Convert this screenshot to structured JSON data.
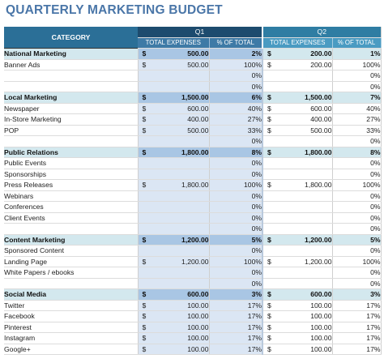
{
  "title": "QUARTERLY MARKETING BUDGET",
  "header": {
    "category": "CATEGORY",
    "quarters": [
      "Q1",
      "Q2"
    ],
    "total_expenses": "TOTAL EXPENSES",
    "pct_of_total": "% OF TOTAL"
  },
  "rows": [
    {
      "type": "section",
      "category": "National Marketing",
      "q1_cur": "$",
      "q1_exp": "500.00",
      "q1_pct": "2%",
      "q2_cur": "$",
      "q2_exp": "200.00",
      "q2_pct": "1%"
    },
    {
      "type": "item",
      "category": "Banner Ads",
      "q1_cur": "$",
      "q1_exp": "500.00",
      "q1_pct": "100%",
      "q2_cur": "$",
      "q2_exp": "200.00",
      "q2_pct": "100%"
    },
    {
      "type": "item",
      "category": "",
      "q1_cur": "",
      "q1_exp": "",
      "q1_pct": "0%",
      "q2_cur": "",
      "q2_exp": "",
      "q2_pct": "0%"
    },
    {
      "type": "item",
      "category": "",
      "q1_cur": "",
      "q1_exp": "",
      "q1_pct": "0%",
      "q2_cur": "",
      "q2_exp": "",
      "q2_pct": "0%"
    },
    {
      "type": "section",
      "category": "Local Marketing",
      "q1_cur": "$",
      "q1_exp": "1,500.00",
      "q1_pct": "6%",
      "q2_cur": "$",
      "q2_exp": "1,500.00",
      "q2_pct": "7%"
    },
    {
      "type": "item",
      "category": "Newspaper",
      "q1_cur": "$",
      "q1_exp": "600.00",
      "q1_pct": "40%",
      "q2_cur": "$",
      "q2_exp": "600.00",
      "q2_pct": "40%"
    },
    {
      "type": "item",
      "category": "In-Store Marketing",
      "q1_cur": "$",
      "q1_exp": "400.00",
      "q1_pct": "27%",
      "q2_cur": "$",
      "q2_exp": "400.00",
      "q2_pct": "27%"
    },
    {
      "type": "item",
      "category": "POP",
      "q1_cur": "$",
      "q1_exp": "500.00",
      "q1_pct": "33%",
      "q2_cur": "$",
      "q2_exp": "500.00",
      "q2_pct": "33%"
    },
    {
      "type": "item",
      "category": "",
      "q1_cur": "",
      "q1_exp": "",
      "q1_pct": "0%",
      "q2_cur": "",
      "q2_exp": "",
      "q2_pct": "0%"
    },
    {
      "type": "section",
      "category": "Public Relations",
      "q1_cur": "$",
      "q1_exp": "1,800.00",
      "q1_pct": "8%",
      "q2_cur": "$",
      "q2_exp": "1,800.00",
      "q2_pct": "8%"
    },
    {
      "type": "item",
      "category": "Public Events",
      "q1_cur": "",
      "q1_exp": "",
      "q1_pct": "0%",
      "q2_cur": "",
      "q2_exp": "",
      "q2_pct": "0%"
    },
    {
      "type": "item",
      "category": "Sponsorships",
      "q1_cur": "",
      "q1_exp": "",
      "q1_pct": "0%",
      "q2_cur": "",
      "q2_exp": "",
      "q2_pct": "0%"
    },
    {
      "type": "item",
      "category": "Press Releases",
      "q1_cur": "$",
      "q1_exp": "1,800.00",
      "q1_pct": "100%",
      "q2_cur": "$",
      "q2_exp": "1,800.00",
      "q2_pct": "100%"
    },
    {
      "type": "item",
      "category": "Webinars",
      "q1_cur": "",
      "q1_exp": "",
      "q1_pct": "0%",
      "q2_cur": "",
      "q2_exp": "",
      "q2_pct": "0%"
    },
    {
      "type": "item",
      "category": "Conferences",
      "q1_cur": "",
      "q1_exp": "",
      "q1_pct": "0%",
      "q2_cur": "",
      "q2_exp": "",
      "q2_pct": "0%"
    },
    {
      "type": "item",
      "category": "Client Events",
      "q1_cur": "",
      "q1_exp": "",
      "q1_pct": "0%",
      "q2_cur": "",
      "q2_exp": "",
      "q2_pct": "0%"
    },
    {
      "type": "item",
      "category": "",
      "q1_cur": "",
      "q1_exp": "",
      "q1_pct": "0%",
      "q2_cur": "",
      "q2_exp": "",
      "q2_pct": "0%"
    },
    {
      "type": "section",
      "category": "Content Marketing",
      "q1_cur": "$",
      "q1_exp": "1,200.00",
      "q1_pct": "5%",
      "q2_cur": "$",
      "q2_exp": "1,200.00",
      "q2_pct": "5%"
    },
    {
      "type": "item",
      "category": "Sponsored Content",
      "q1_cur": "",
      "q1_exp": "",
      "q1_pct": "0%",
      "q2_cur": "",
      "q2_exp": "",
      "q2_pct": "0%"
    },
    {
      "type": "item",
      "category": "Landing Page",
      "q1_cur": "$",
      "q1_exp": "1,200.00",
      "q1_pct": "100%",
      "q2_cur": "$",
      "q2_exp": "1,200.00",
      "q2_pct": "100%"
    },
    {
      "type": "item",
      "category": "White Papers / ebooks",
      "q1_cur": "",
      "q1_exp": "",
      "q1_pct": "0%",
      "q2_cur": "",
      "q2_exp": "",
      "q2_pct": "0%"
    },
    {
      "type": "item",
      "category": "",
      "q1_cur": "",
      "q1_exp": "",
      "q1_pct": "0%",
      "q2_cur": "",
      "q2_exp": "",
      "q2_pct": "0%"
    },
    {
      "type": "section",
      "category": "Social Media",
      "q1_cur": "$",
      "q1_exp": "600.00",
      "q1_pct": "3%",
      "q2_cur": "$",
      "q2_exp": "600.00",
      "q2_pct": "3%"
    },
    {
      "type": "item",
      "category": "Twitter",
      "q1_cur": "$",
      "q1_exp": "100.00",
      "q1_pct": "17%",
      "q2_cur": "$",
      "q2_exp": "100.00",
      "q2_pct": "17%"
    },
    {
      "type": "item",
      "category": "Facebook",
      "q1_cur": "$",
      "q1_exp": "100.00",
      "q1_pct": "17%",
      "q2_cur": "$",
      "q2_exp": "100.00",
      "q2_pct": "17%"
    },
    {
      "type": "item",
      "category": "Pinterest",
      "q1_cur": "$",
      "q1_exp": "100.00",
      "q1_pct": "17%",
      "q2_cur": "$",
      "q2_exp": "100.00",
      "q2_pct": "17%"
    },
    {
      "type": "item",
      "category": "Instagram",
      "q1_cur": "$",
      "q1_exp": "100.00",
      "q1_pct": "17%",
      "q2_cur": "$",
      "q2_exp": "100.00",
      "q2_pct": "17%"
    },
    {
      "type": "item",
      "category": "Google+",
      "q1_cur": "$",
      "q1_exp": "100.00",
      "q1_pct": "17%",
      "q2_cur": "$",
      "q2_exp": "100.00",
      "q2_pct": "17%"
    }
  ]
}
